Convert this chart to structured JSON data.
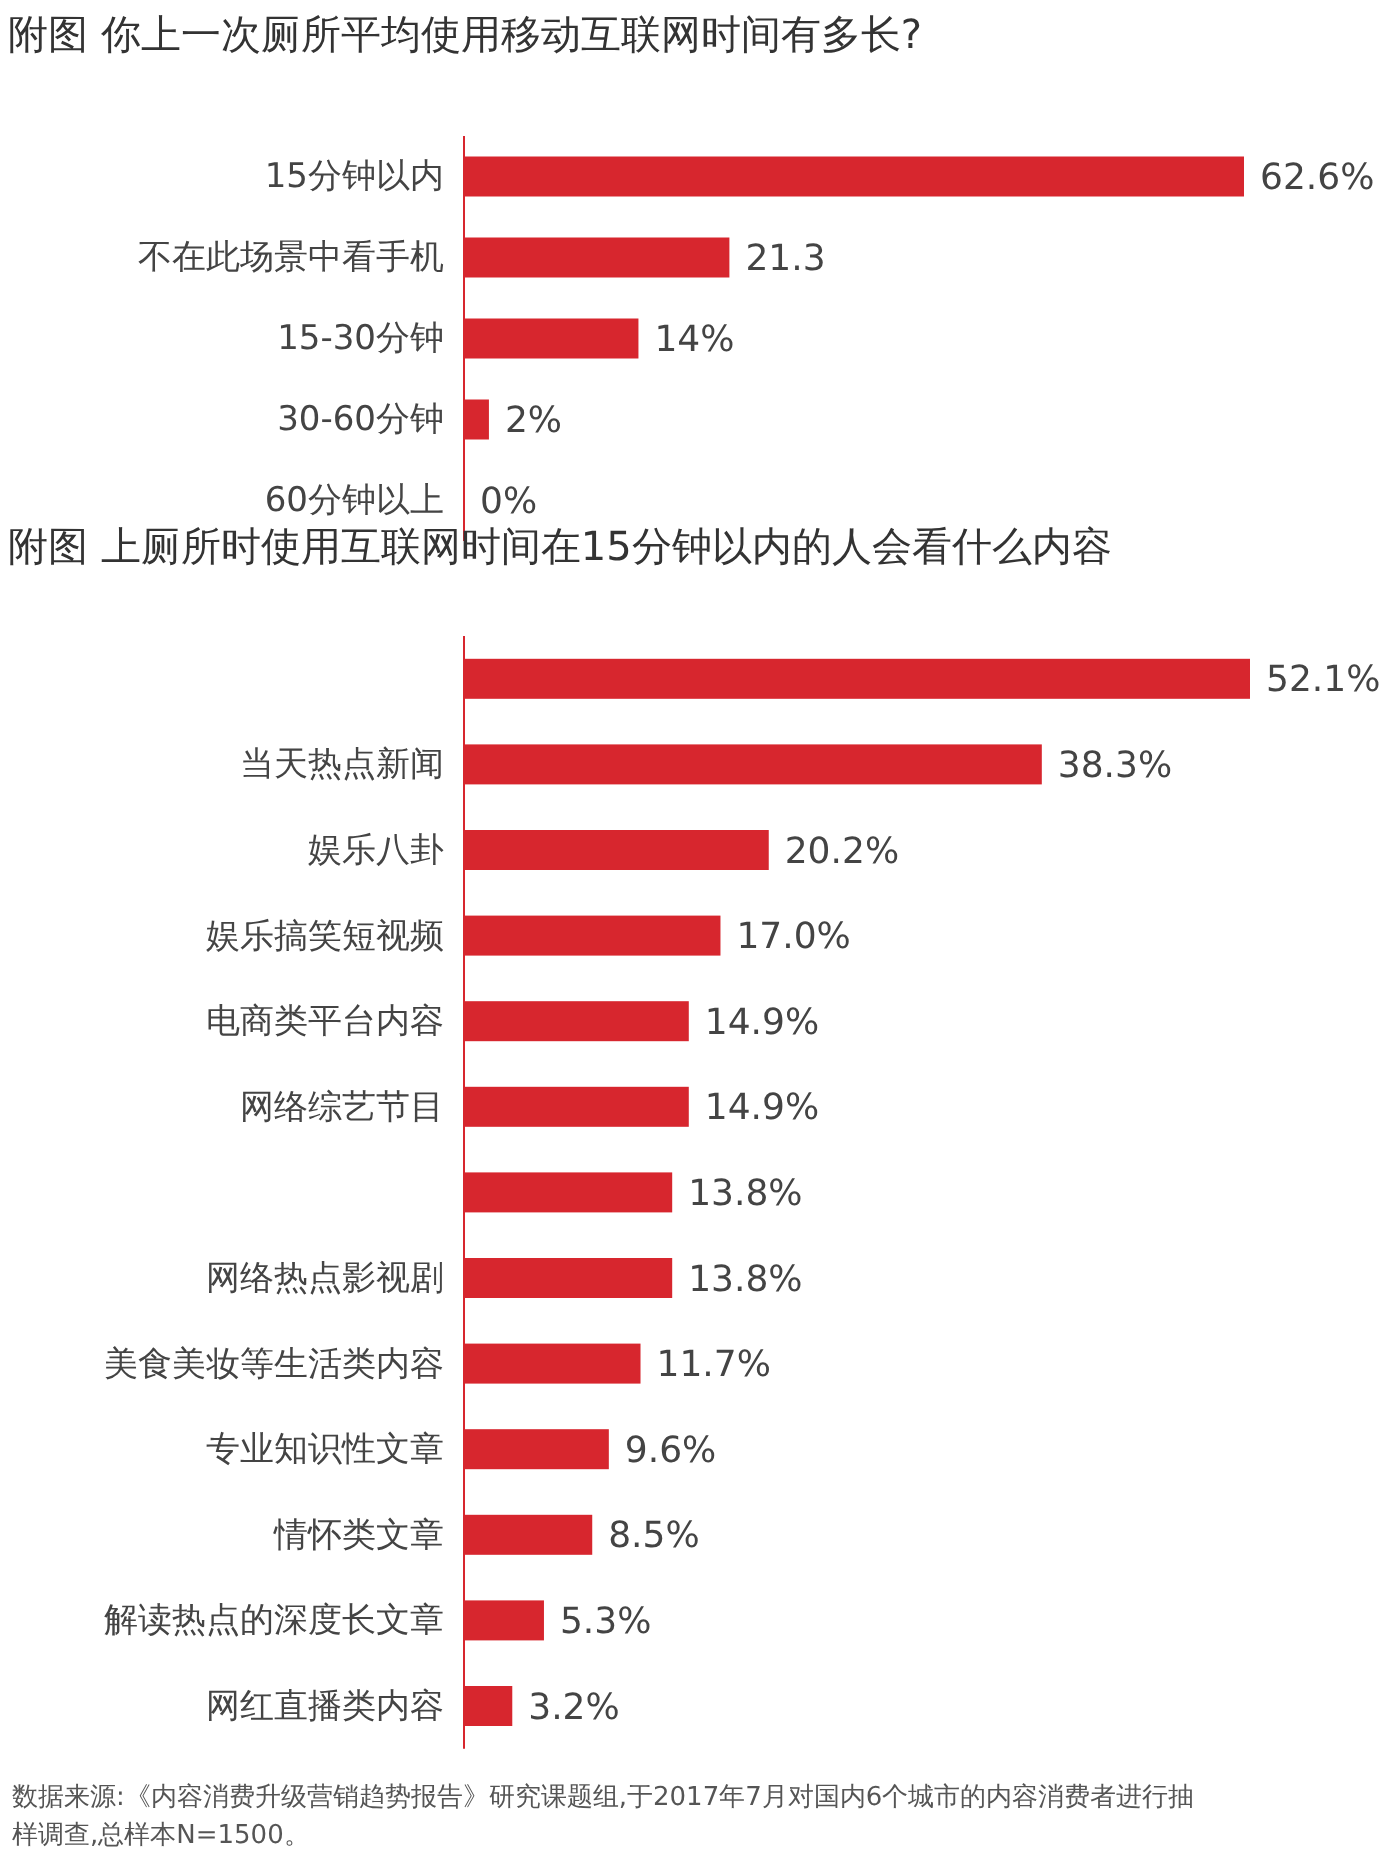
{
  "chart_data": [
    {
      "type": "bar",
      "orientation": "horizontal",
      "title": "附图  你上一次厕所平均使用移动互联网时间有多长?",
      "categories": [
        "15分钟以内",
        "不在此场景中看手机",
        "15-30分钟",
        "30-60分钟",
        "60分钟以上"
      ],
      "values": [
        62.6,
        21.3,
        14,
        2,
        0
      ],
      "value_labels": [
        "62.6%",
        "21.3",
        "14%",
        "2%",
        "0%"
      ],
      "color": "#d7262e"
    },
    {
      "type": "bar",
      "orientation": "horizontal",
      "title": "附图  上厕所时使用互联网时间在15分钟以内的人会看什么内容",
      "categories": [
        null,
        "当天热点新闻",
        "娱乐八卦",
        "娱乐搞笑短视频",
        "电商类平台内容",
        "网络综艺节目",
        null,
        "网络热点影视剧",
        "美食美妆等生活类内容",
        "专业知识性文章",
        "情怀类文章",
        "解读热点的深度长文章",
        "网红直播类内容"
      ],
      "values": [
        52.1,
        38.3,
        20.2,
        17.0,
        14.9,
        14.9,
        13.8,
        13.8,
        11.7,
        9.6,
        8.5,
        5.3,
        3.2
      ],
      "value_labels": [
        "52.1%",
        "38.3%",
        "20.2%",
        "17.0%",
        "14.9%",
        "14.9%",
        "13.8%",
        "13.8%",
        "11.7%",
        "9.6%",
        "8.5%",
        "5.3%",
        "3.2%"
      ],
      "color": "#d7262e",
      "annotations": [
        "数据来源:《内容消费升级营销趋势报告》研究课题组,于2017年7月对国内6个城市的内容消费者进行抽样调查,总样本N=1500。"
      ]
    }
  ]
}
